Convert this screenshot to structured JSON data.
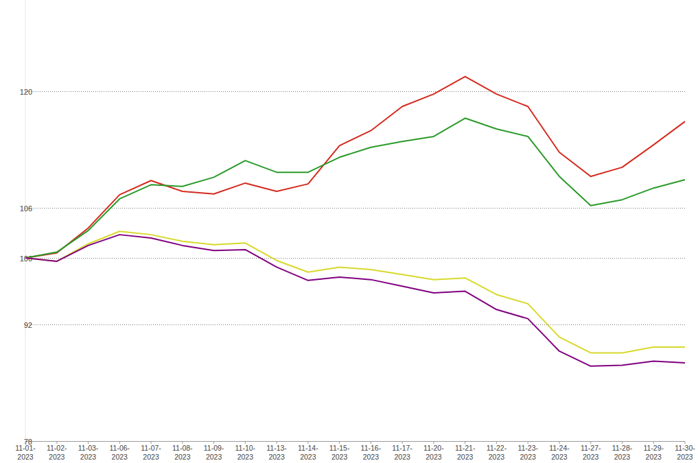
{
  "chart_data": {
    "type": "line",
    "categories": [
      "11-01-2023",
      "11-02-2023",
      "11-03-2023",
      "11-06-2023",
      "11-07-2023",
      "11-08-2023",
      "11-09-2023",
      "11-10-2023",
      "11-13-2023",
      "11-14-2023",
      "11-15-2023",
      "11-16-2023",
      "11-17-2023",
      "11-20-2023",
      "11-21-2023",
      "11-22-2023",
      "11-23-2023",
      "11-24-2023",
      "11-27-2023",
      "11-28-2023",
      "11-29-2023",
      "11-30-2023"
    ],
    "series": [
      {
        "color": "#d42a1e",
        "values": [
          100,
          100.6,
          103.6,
          107.6,
          109.3,
          108.0,
          107.7,
          109.0,
          108.0,
          108.9,
          113.5,
          115.3,
          118.2,
          119.7,
          121.8,
          119.7,
          118.2,
          112.7,
          109.8,
          110.9,
          113.6,
          116.4
        ]
      },
      {
        "color": "#2a9a2a",
        "values": [
          100,
          100.7,
          103.3,
          107.1,
          108.8,
          108.6,
          109.7,
          111.7,
          110.3,
          110.3,
          112.1,
          113.3,
          114.0,
          114.6,
          116.8,
          115.5,
          114.6,
          109.8,
          106.3,
          107.0,
          108.4,
          109.4
        ]
      },
      {
        "color": "#d8d82c",
        "values": [
          100,
          99.6,
          101.7,
          103.2,
          102.8,
          102.0,
          101.6,
          101.8,
          99.7,
          98.3,
          98.9,
          98.6,
          98.0,
          97.4,
          97.6,
          95.6,
          94.5,
          90.5,
          88.6,
          88.6,
          89.3,
          89.3
        ]
      },
      {
        "color": "#800080",
        "values": [
          100,
          99.6,
          101.5,
          102.8,
          102.4,
          101.5,
          100.9,
          101.0,
          98.9,
          97.3,
          97.7,
          97.4,
          96.6,
          95.8,
          96.0,
          93.8,
          92.7,
          88.8,
          87.0,
          87.1,
          87.6,
          87.4
        ]
      }
    ],
    "ylim": [
      78,
      131
    ],
    "yticks": [
      78,
      92,
      100,
      106,
      120
    ],
    "grid": true
  }
}
